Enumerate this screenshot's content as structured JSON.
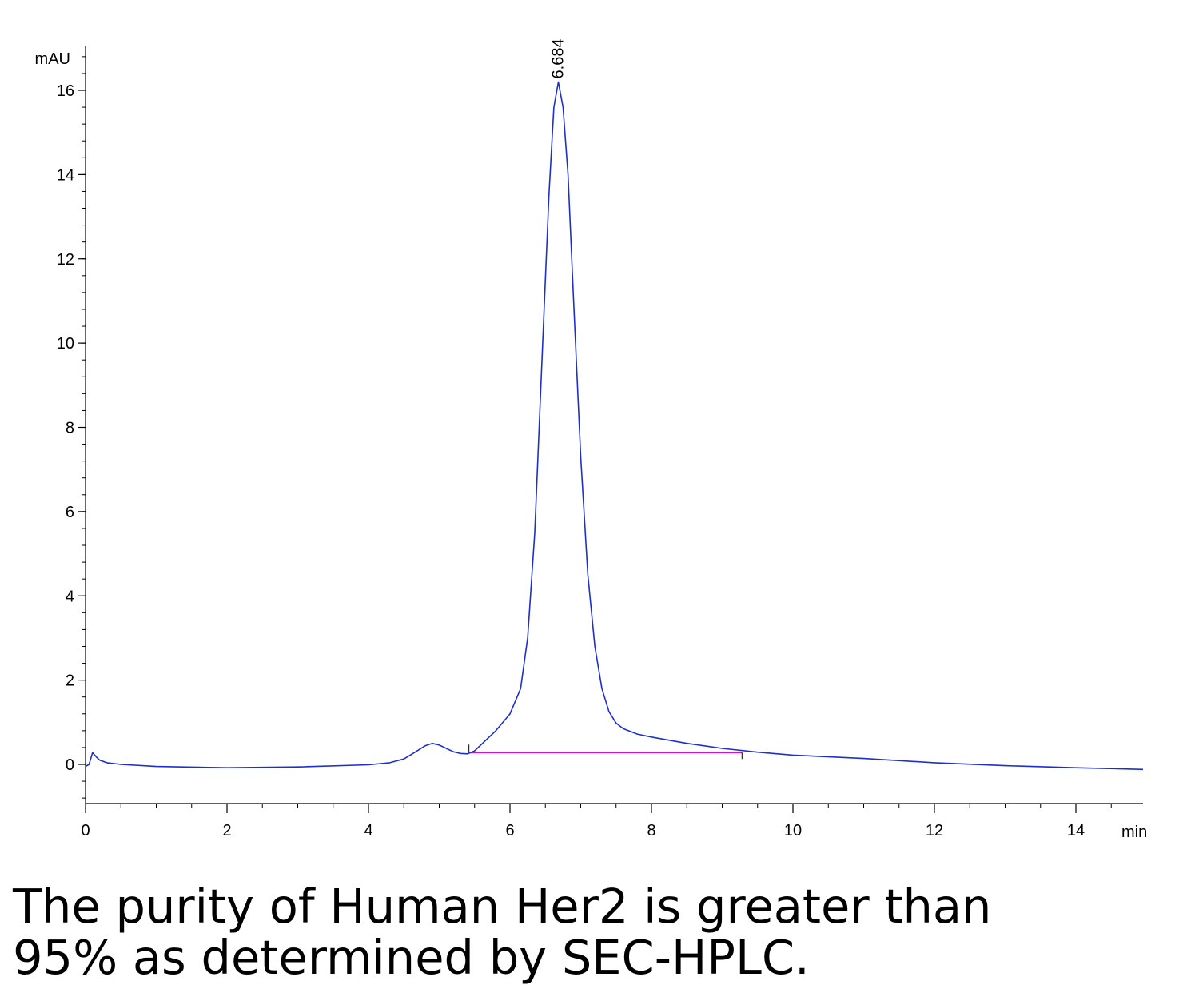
{
  "chart_data": {
    "type": "line",
    "title": "",
    "ylabel": "mAU",
    "xlabel": "min",
    "xlim": [
      0,
      15
    ],
    "ylim": [
      -0.95,
      17.3
    ],
    "x_ticks": [
      0,
      2,
      4,
      6,
      8,
      10,
      12,
      14
    ],
    "y_ticks": [
      0,
      2,
      4,
      6,
      8,
      10,
      12,
      14,
      16
    ],
    "peak_label": "6.684",
    "peak": {
      "x": 6.684,
      "y": 16.2
    },
    "series": [
      {
        "x": [
          0,
          0.05,
          0.1,
          0.15,
          0.2,
          0.3,
          0.5,
          1,
          2,
          3,
          4,
          4.3,
          4.5,
          4.65,
          4.8,
          4.9,
          5.0,
          5.1,
          5.2,
          5.3,
          5.4,
          5.5,
          5.6,
          5.8,
          6.0,
          6.15,
          6.25,
          6.35,
          6.45,
          6.55,
          6.62,
          6.684,
          6.75,
          6.82,
          6.9,
          7.0,
          7.1,
          7.2,
          7.3,
          7.4,
          7.5,
          7.6,
          7.8,
          8.0,
          8.5,
          9.0,
          9.5,
          10,
          11,
          12,
          13,
          14,
          15
        ],
        "y": [
          -0.05,
          0.0,
          0.28,
          0.18,
          0.1,
          0.04,
          0.0,
          -0.05,
          -0.08,
          -0.06,
          -0.01,
          0.04,
          0.13,
          0.28,
          0.44,
          0.5,
          0.46,
          0.38,
          0.3,
          0.26,
          0.25,
          0.32,
          0.48,
          0.8,
          1.2,
          1.8,
          3.0,
          5.5,
          9.5,
          13.5,
          15.6,
          16.2,
          15.6,
          14.0,
          11.0,
          7.3,
          4.5,
          2.8,
          1.8,
          1.25,
          0.98,
          0.85,
          0.72,
          0.65,
          0.5,
          0.38,
          0.29,
          0.22,
          0.14,
          0.04,
          -0.03,
          -0.08,
          -0.12
        ]
      }
    ],
    "baseline": {
      "x": [
        5.42,
        9.28
      ],
      "y": [
        0.28,
        0.28
      ]
    },
    "colors": {
      "signal": "#1f2fcc",
      "baseline": "#e800e8",
      "axis": "#000000"
    }
  },
  "caption": {
    "line1": "The purity of Human Her2 is greater than",
    "line2": "95% as determined by SEC-HPLC."
  }
}
